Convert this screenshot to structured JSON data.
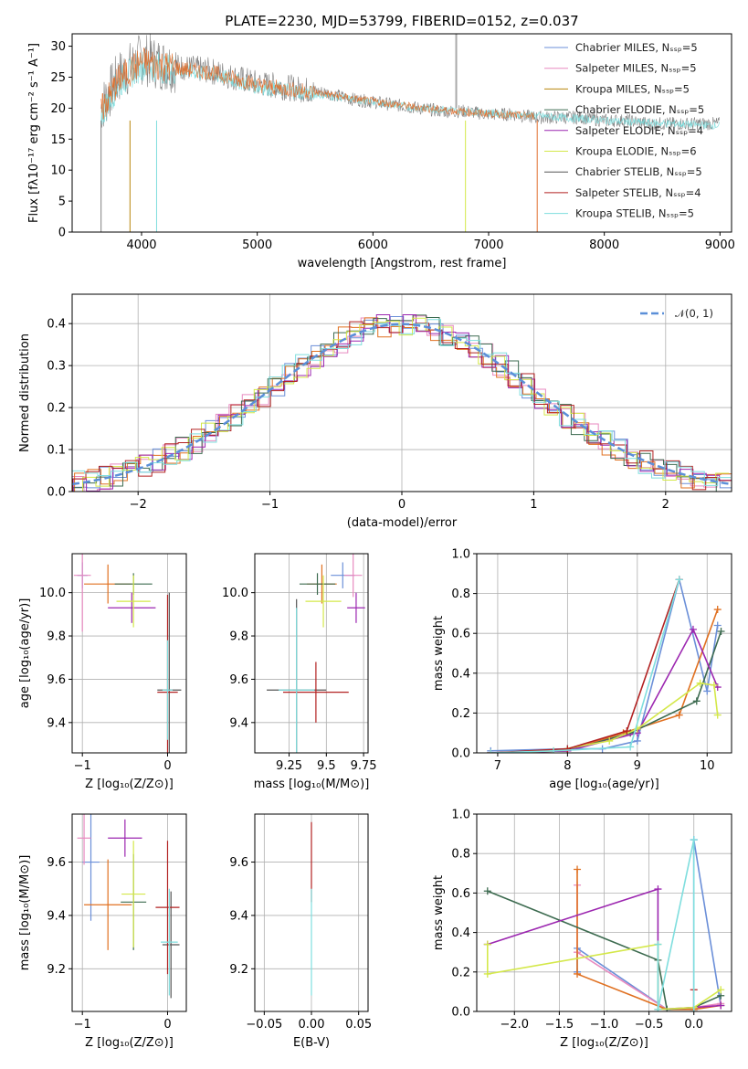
{
  "chart_data": [
    {
      "id": "spectrum",
      "type": "line",
      "title": "PLATE=2230, MJD=53799, FIBERID=0152, z=0.037",
      "xlabel": "wavelength [Angstrom, rest frame]",
      "ylabel": "Flux [fλ10⁻¹⁷ erg cm⁻² s⁻¹ A⁻¹]",
      "xlim": [
        3400,
        9100
      ],
      "ylim": [
        0,
        32
      ],
      "xticks": [
        4000,
        5000,
        6000,
        7000,
        8000,
        9000
      ],
      "yticks": [
        0,
        5,
        10,
        15,
        20,
        25,
        30
      ],
      "grid": false,
      "legend_position": "top-right",
      "legend": [
        {
          "label": "Chabrier MILES, Nₛₛₚ=5",
          "color": "#6b8fd8"
        },
        {
          "label": "Salpeter MILES, Nₛₛₚ=5",
          "color": "#e88ac0"
        },
        {
          "label": "Kroupa MILES, Nₛₛₚ=5",
          "color": "#b8860b"
        },
        {
          "label": "Chabrier ELODIE, Nₛₛₚ=5",
          "color": "#3d6b50"
        },
        {
          "label": "Salpeter ELODIE, Nₛₛₚ=4",
          "color": "#9c27b0"
        },
        {
          "label": "Kroupa ELODIE, Nₛₛₚ=6",
          "color": "#d4e84a"
        },
        {
          "label": "Chabrier STELIB, Nₛₛₚ=5",
          "color": "#555555"
        },
        {
          "label": "Salpeter STELIB, Nₛₛₚ=4",
          "color": "#b22222"
        },
        {
          "label": "Kroupa STELIB, Nₛₛₚ=5",
          "color": "#7fdede"
        }
      ],
      "series": [
        {
          "color": "#808080",
          "x": [
            3650,
            3800,
            4000,
            4200,
            4400,
            4600,
            4800,
            5000,
            5200,
            5400,
            5600,
            5800,
            6000,
            6200,
            6400,
            6600,
            6800,
            7000,
            7200,
            7400,
            7600,
            7800,
            8000,
            8200,
            8400,
            8600,
            8800,
            9000
          ],
          "y": [
            20,
            25,
            28,
            27,
            26.5,
            26,
            25,
            24,
            23.5,
            23,
            22.5,
            21.5,
            21,
            20.5,
            20,
            19.5,
            19.5,
            19,
            19,
            18.5,
            18.5,
            18.5,
            18,
            18,
            17.5,
            17.5,
            17.5,
            17.5
          ]
        },
        {
          "color": "#7fdede",
          "x": [
            3650,
            3800,
            4000,
            4200,
            4400,
            4600,
            4800,
            5000,
            5200,
            5400,
            5600,
            5800,
            6000,
            6200,
            6400,
            6600,
            6800,
            7000,
            7200,
            7400,
            7600,
            7800,
            8000,
            8200,
            8400,
            8600,
            8800,
            9000
          ],
          "y": [
            19,
            24,
            27,
            26.5,
            26,
            25.5,
            24.5,
            23.5,
            23,
            22.5,
            22,
            21.5,
            21,
            20.5,
            20,
            19.8,
            19.5,
            19.2,
            19,
            18.8,
            18.5,
            18.3,
            18,
            17.8,
            17.6,
            17.5,
            17.3,
            17.2
          ]
        },
        {
          "color": "#e07030",
          "x": [
            3650,
            3800,
            4000,
            4200,
            4400,
            4600,
            4800,
            5000,
            5200,
            5400,
            5600,
            5800,
            6000,
            6200,
            6400,
            6600,
            6800,
            7000,
            7200,
            7400
          ],
          "y": [
            19.5,
            24.5,
            27.5,
            26.8,
            26.2,
            25.8,
            24.8,
            23.8,
            23.2,
            22.8,
            22.3,
            21.6,
            21.1,
            20.6,
            20.1,
            19.7,
            19.4,
            19.1,
            18.9,
            18.7
          ]
        }
      ]
    },
    {
      "id": "residuals",
      "type": "histogram",
      "xlabel": "(data-model)/error",
      "ylabel": "Normed distribution",
      "xlim": [
        -2.5,
        2.5
      ],
      "ylim": [
        0,
        0.47
      ],
      "xticks": [
        -2,
        -1,
        0,
        1,
        2
      ],
      "yticks": [
        0.0,
        0.1,
        0.2,
        0.3,
        0.4
      ],
      "grid": true,
      "legend_position": "top-right",
      "legend": [
        {
          "label": "𝒩(0, 1)",
          "color": "#5b8fd8"
        }
      ],
      "bin_width": 0.1,
      "x_start": -2.5,
      "series": [
        {
          "color": "#6b8fd8",
          "offset": 0.012
        },
        {
          "color": "#e88ac0",
          "offset": -0.01
        },
        {
          "color": "#e07020",
          "offset": 0.018
        },
        {
          "color": "#3d6b50",
          "offset": -0.016
        },
        {
          "color": "#9c27b0",
          "offset": 0.008
        },
        {
          "color": "#d4e84a",
          "offset": -0.02
        },
        {
          "color": "#b22222",
          "offset": 0.004
        },
        {
          "color": "#7fdede",
          "offset": -0.006
        }
      ]
    },
    {
      "id": "age-vs-Z",
      "type": "errorbar",
      "xlabel": "Z [log₁₀(Z/Z⊙)]",
      "ylabel": "age  [log₁₀(age/yr)]",
      "xlim": [
        -1.12,
        0.22
      ],
      "ylim": [
        9.26,
        10.18
      ],
      "xticks": [
        -1,
        0
      ],
      "yticks": [
        9.4,
        9.6,
        9.8,
        10.0
      ],
      "grid": true,
      "points": [
        {
          "color": "#6b8fd8",
          "x": -1.0,
          "y": 10.08,
          "xerr": 0.06,
          "yerr": 0.06
        },
        {
          "color": "#e88ac0",
          "x": -1.0,
          "y": 10.08,
          "xerr": 0.1,
          "yerr": 0.26
        },
        {
          "color": "#e07020",
          "x": -0.7,
          "y": 10.04,
          "xerr": 0.28,
          "yerr": 0.09
        },
        {
          "color": "#3d6b50",
          "x": -0.4,
          "y": 10.04,
          "xerr": 0.22,
          "yerr": 0.05
        },
        {
          "color": "#9c27b0",
          "x": -0.42,
          "y": 9.93,
          "xerr": 0.28,
          "yerr": 0.07
        },
        {
          "color": "#d4e84a",
          "x": -0.4,
          "y": 9.96,
          "xerr": 0.2,
          "yerr": 0.12
        },
        {
          "color": "#555555",
          "x": 0.02,
          "y": 9.55,
          "xerr": 0.14,
          "yerr": 0.45
        },
        {
          "color": "#b22222",
          "x": 0.0,
          "y": 9.54,
          "xerr": 0.12,
          "yerr": 0.45
        },
        {
          "color": "#7fdede",
          "x": 0.0,
          "y": 9.55,
          "xerr": 0.06,
          "yerr": 0.23
        }
      ]
    },
    {
      "id": "age-vs-mass",
      "type": "errorbar",
      "xlabel": "mass [log₁₀(M/M⊙)]",
      "ylabel": "",
      "xlim": [
        9.02,
        9.78
      ],
      "ylim": [
        9.26,
        10.18
      ],
      "xticks": [
        9.25,
        9.5,
        9.75
      ],
      "yticks": [
        9.4,
        9.6,
        9.8,
        10.0
      ],
      "grid": true,
      "points": [
        {
          "color": "#6b8fd8",
          "x": 9.61,
          "y": 10.08,
          "xerr": 0.08,
          "yerr": 0.06
        },
        {
          "color": "#e88ac0",
          "x": 9.68,
          "y": 10.08,
          "xerr": 0.06,
          "yerr": 0.1
        },
        {
          "color": "#e07020",
          "x": 9.47,
          "y": 10.04,
          "xerr": 0.1,
          "yerr": 0.09
        },
        {
          "color": "#3d6b50",
          "x": 9.44,
          "y": 10.04,
          "xerr": 0.12,
          "yerr": 0.05
        },
        {
          "color": "#9c27b0",
          "x": 9.7,
          "y": 9.93,
          "xerr": 0.06,
          "yerr": 0.07
        },
        {
          "color": "#d4e84a",
          "x": 9.48,
          "y": 9.96,
          "xerr": 0.12,
          "yerr": 0.12
        },
        {
          "color": "#555555",
          "x": 9.3,
          "y": 9.55,
          "xerr": 0.2,
          "yerr": 0.42
        },
        {
          "color": "#b22222",
          "x": 9.43,
          "y": 9.54,
          "xerr": 0.22,
          "yerr": 0.14
        },
        {
          "color": "#7fdede",
          "x": 9.3,
          "y": 9.55,
          "xerr": 0.12,
          "yerr": 0.38
        }
      ]
    },
    {
      "id": "massweight-vs-age",
      "type": "line",
      "xlabel": "age  [log₁₀(age/yr)]",
      "ylabel": "mass weight",
      "xlim": [
        6.7,
        10.35
      ],
      "ylim": [
        0,
        1.0
      ],
      "xticks": [
        7,
        8,
        9,
        10
      ],
      "yticks": [
        0.0,
        0.2,
        0.4,
        0.6,
        0.8,
        1.0
      ],
      "grid": true,
      "series": [
        {
          "color": "#6b8fd8",
          "x": [
            6.9,
            8.0,
            8.5,
            9.0,
            9.6,
            10.0,
            10.15
          ],
          "y": [
            0.01,
            0.02,
            0.02,
            0.06,
            0.87,
            0.31,
            0.64
          ]
        },
        {
          "color": "#e07020",
          "x": [
            6.9,
            8.0,
            8.8,
            9.6,
            10.15
          ],
          "y": [
            0.0,
            0.01,
            0.1,
            0.19,
            0.72
          ]
        },
        {
          "color": "#3d6b50",
          "x": [
            6.9,
            8.0,
            8.9,
            9.85,
            10.2
          ],
          "y": [
            0.0,
            0.01,
            0.1,
            0.26,
            0.61
          ]
        },
        {
          "color": "#9c27b0",
          "x": [
            6.9,
            8.0,
            9.0,
            9.8,
            10.15
          ],
          "y": [
            0.0,
            0.01,
            0.1,
            0.62,
            0.33
          ]
        },
        {
          "color": "#d4e84a",
          "x": [
            6.9,
            7.8,
            8.6,
            9.0,
            9.9,
            10.1,
            10.15
          ],
          "y": [
            0.0,
            0.01,
            0.06,
            0.12,
            0.35,
            0.34,
            0.19
          ]
        },
        {
          "color": "#b22222",
          "x": [
            6.9,
            8.0,
            8.85,
            9.6
          ],
          "y": [
            0.0,
            0.02,
            0.11,
            0.87
          ]
        },
        {
          "color": "#7fdede",
          "x": [
            6.9,
            7.8,
            8.9,
            9.6
          ],
          "y": [
            0.0,
            0.01,
            0.03,
            0.87
          ]
        }
      ]
    },
    {
      "id": "mass-vs-Z",
      "type": "errorbar",
      "xlabel": "Z [log₁₀(Z/Z⊙)]",
      "ylabel": "mass [log₁₀(M/M⊙)]",
      "xlim": [
        -1.12,
        0.22
      ],
      "ylim": [
        9.04,
        9.78
      ],
      "xticks": [
        -1,
        0
      ],
      "yticks": [
        9.2,
        9.4,
        9.6
      ],
      "grid": true,
      "points": [
        {
          "color": "#6b8fd8",
          "x": -0.9,
          "y": 9.6,
          "xerr": 0.1,
          "yerr": 0.22
        },
        {
          "color": "#e88ac0",
          "x": -0.98,
          "y": 9.69,
          "xerr": 0.08,
          "yerr": 0.1
        },
        {
          "color": "#e07020",
          "x": -0.7,
          "y": 9.44,
          "xerr": 0.28,
          "yerr": 0.17
        },
        {
          "color": "#3d6b50",
          "x": -0.4,
          "y": 9.45,
          "xerr": 0.15,
          "yerr": 0.18
        },
        {
          "color": "#9c27b0",
          "x": -0.5,
          "y": 9.69,
          "xerr": 0.2,
          "yerr": 0.07
        },
        {
          "color": "#d4e84a",
          "x": -0.4,
          "y": 9.48,
          "xerr": 0.14,
          "yerr": 0.2
        },
        {
          "color": "#555555",
          "x": 0.04,
          "y": 9.29,
          "xerr": 0.1,
          "yerr": 0.2
        },
        {
          "color": "#b22222",
          "x": 0.0,
          "y": 9.43,
          "xerr": 0.14,
          "yerr": 0.25
        },
        {
          "color": "#7fdede",
          "x": 0.02,
          "y": 9.3,
          "xerr": 0.1,
          "yerr": 0.2
        }
      ]
    },
    {
      "id": "mass-vs-ebv",
      "type": "errorbar",
      "xlabel": "E(B-V)",
      "ylabel": "",
      "xlim": [
        -0.06,
        0.06
      ],
      "ylim": [
        9.04,
        9.78
      ],
      "xticks": [
        -0.05,
        0.0,
        0.05
      ],
      "yticks": [
        9.2,
        9.4,
        9.6
      ],
      "grid": true,
      "points": [
        {
          "color": "#b22222",
          "x": 0.0,
          "y": 9.6,
          "xerr": 0.0,
          "yerr": 0.15
        },
        {
          "color": "#7fdede",
          "x": 0.0,
          "y": 9.3,
          "xerr": 0.0,
          "yerr": 0.2
        }
      ]
    },
    {
      "id": "massweight-vs-Z",
      "type": "line",
      "xlabel": "Z [log₁₀(Z/Z⊙)]",
      "ylabel": "mass weight",
      "xlim": [
        -2.42,
        0.42
      ],
      "ylim": [
        0,
        1.0
      ],
      "xticks": [
        -2.0,
        -1.5,
        -1.0,
        -0.5,
        0.0
      ],
      "yticks": [
        0.0,
        0.2,
        0.4,
        0.6,
        0.8,
        1.0
      ],
      "grid": true,
      "series": [
        {
          "color": "#6b8fd8",
          "x": [
            -1.3,
            -1.3,
            -0.3,
            0.0,
            0.0,
            0.3
          ],
          "y": [
            0.2,
            0.32,
            0.01,
            0.01,
            0.87,
            0.03
          ]
        },
        {
          "color": "#e88ac0",
          "x": [
            -1.3,
            -1.3,
            -0.3,
            0.0,
            0.3
          ],
          "y": [
            0.64,
            0.3,
            0.01,
            0.02,
            0.04
          ]
        },
        {
          "color": "#e07020",
          "x": [
            -1.3,
            -1.3,
            -0.3,
            0.0,
            0.3
          ],
          "y": [
            0.72,
            0.19,
            0.01,
            0.01,
            0.03
          ]
        },
        {
          "color": "#3d6b50",
          "x": [
            -2.3,
            -0.4,
            -0.3,
            0.0,
            0.3
          ],
          "y": [
            0.61,
            0.26,
            0.01,
            0.02,
            0.08
          ]
        },
        {
          "color": "#9c27b0",
          "x": [
            -2.3,
            -0.4,
            -0.4,
            0.0,
            0.3
          ],
          "y": [
            0.34,
            0.62,
            0.01,
            0.02,
            0.03
          ]
        },
        {
          "color": "#d4e84a",
          "x": [
            -2.3,
            -2.3,
            -0.4,
            -0.4,
            0.0,
            0.3
          ],
          "y": [
            0.34,
            0.19,
            0.34,
            0.01,
            0.02,
            0.11
          ]
        },
        {
          "color": "#b22222",
          "x": [
            0.0,
            0.0
          ],
          "y": [
            0.11,
            0.0
          ]
        },
        {
          "color": "#7fdede",
          "x": [
            -0.4,
            -0.4,
            0.0,
            0.0
          ],
          "y": [
            0.34,
            0.01,
            0.87,
            0.0
          ]
        }
      ]
    }
  ]
}
